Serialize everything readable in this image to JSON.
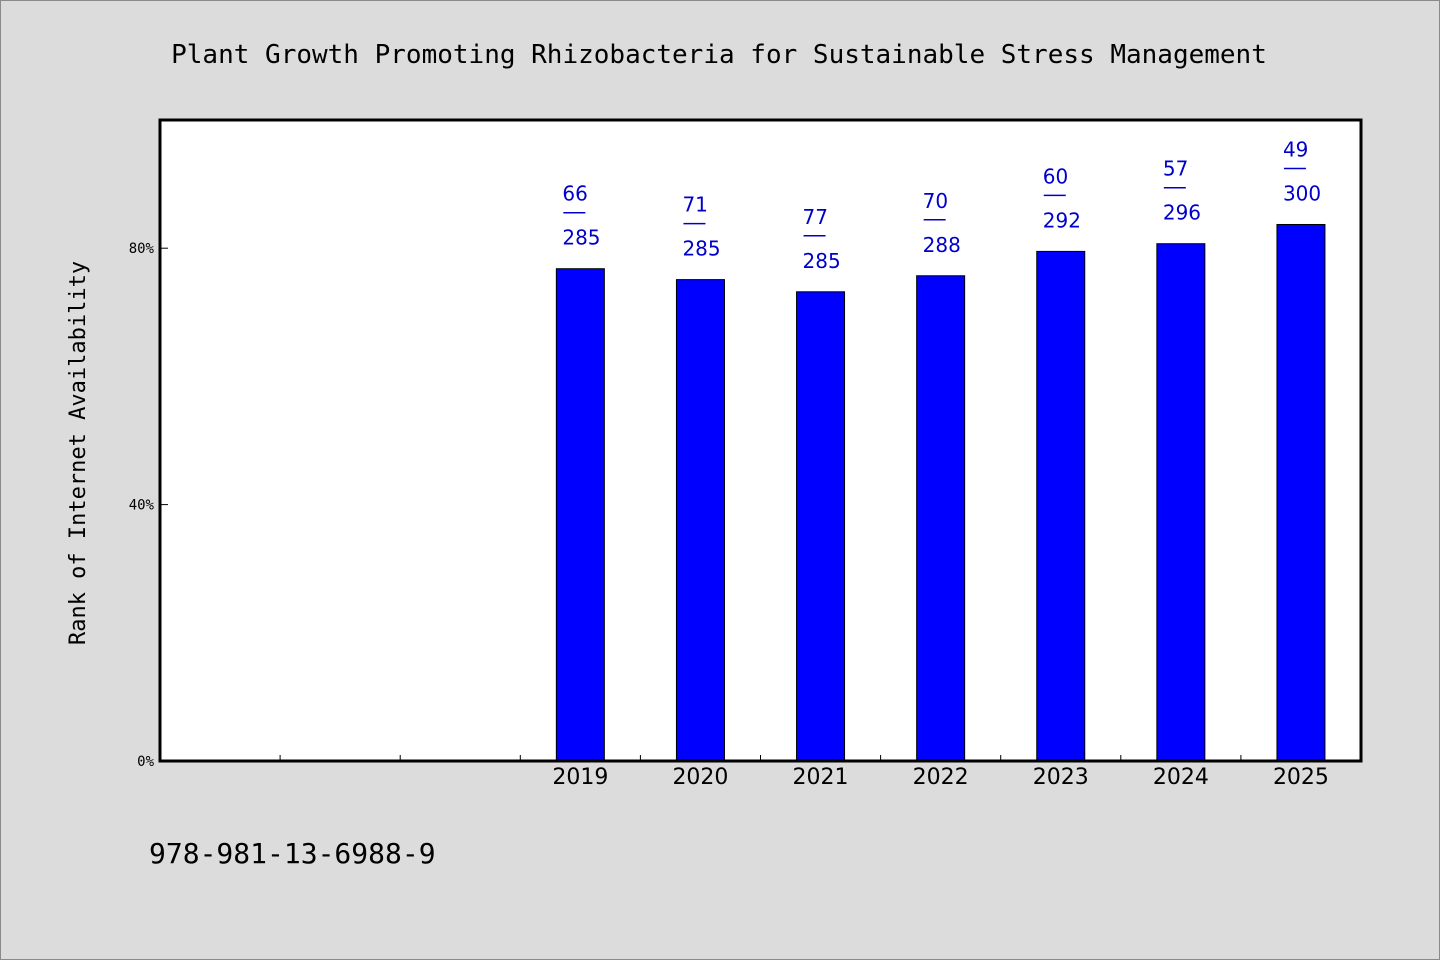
{
  "chart_data": {
    "type": "bar",
    "title": "Plant Growth Promoting Rhizobacteria for Sustainable Stress Management",
    "ylabel": "Rank of Internet Availability",
    "xlabel": "",
    "categories": [
      "2019",
      "2020",
      "2021",
      "2022",
      "2023",
      "2024",
      "2025"
    ],
    "x_range": [
      2016,
      2026
    ],
    "ylim": [
      0,
      1.0
    ],
    "yticks": [
      0,
      0.4,
      0.8
    ],
    "ytick_labels": [
      "0%",
      "40%",
      "80%"
    ],
    "values": [
      0.768,
      0.751,
      0.732,
      0.757,
      0.795,
      0.807,
      0.837
    ],
    "rank": [
      "66",
      "71",
      "77",
      "70",
      "60",
      "57",
      "49"
    ],
    "total": [
      "285",
      "285",
      "285",
      "288",
      "292",
      "296",
      "300"
    ],
    "grid": false,
    "legend": "none",
    "bar_color": "#0000ff",
    "label_color": "#0000cc"
  },
  "footer": {
    "isbn": "978-981-13-6988-9"
  }
}
